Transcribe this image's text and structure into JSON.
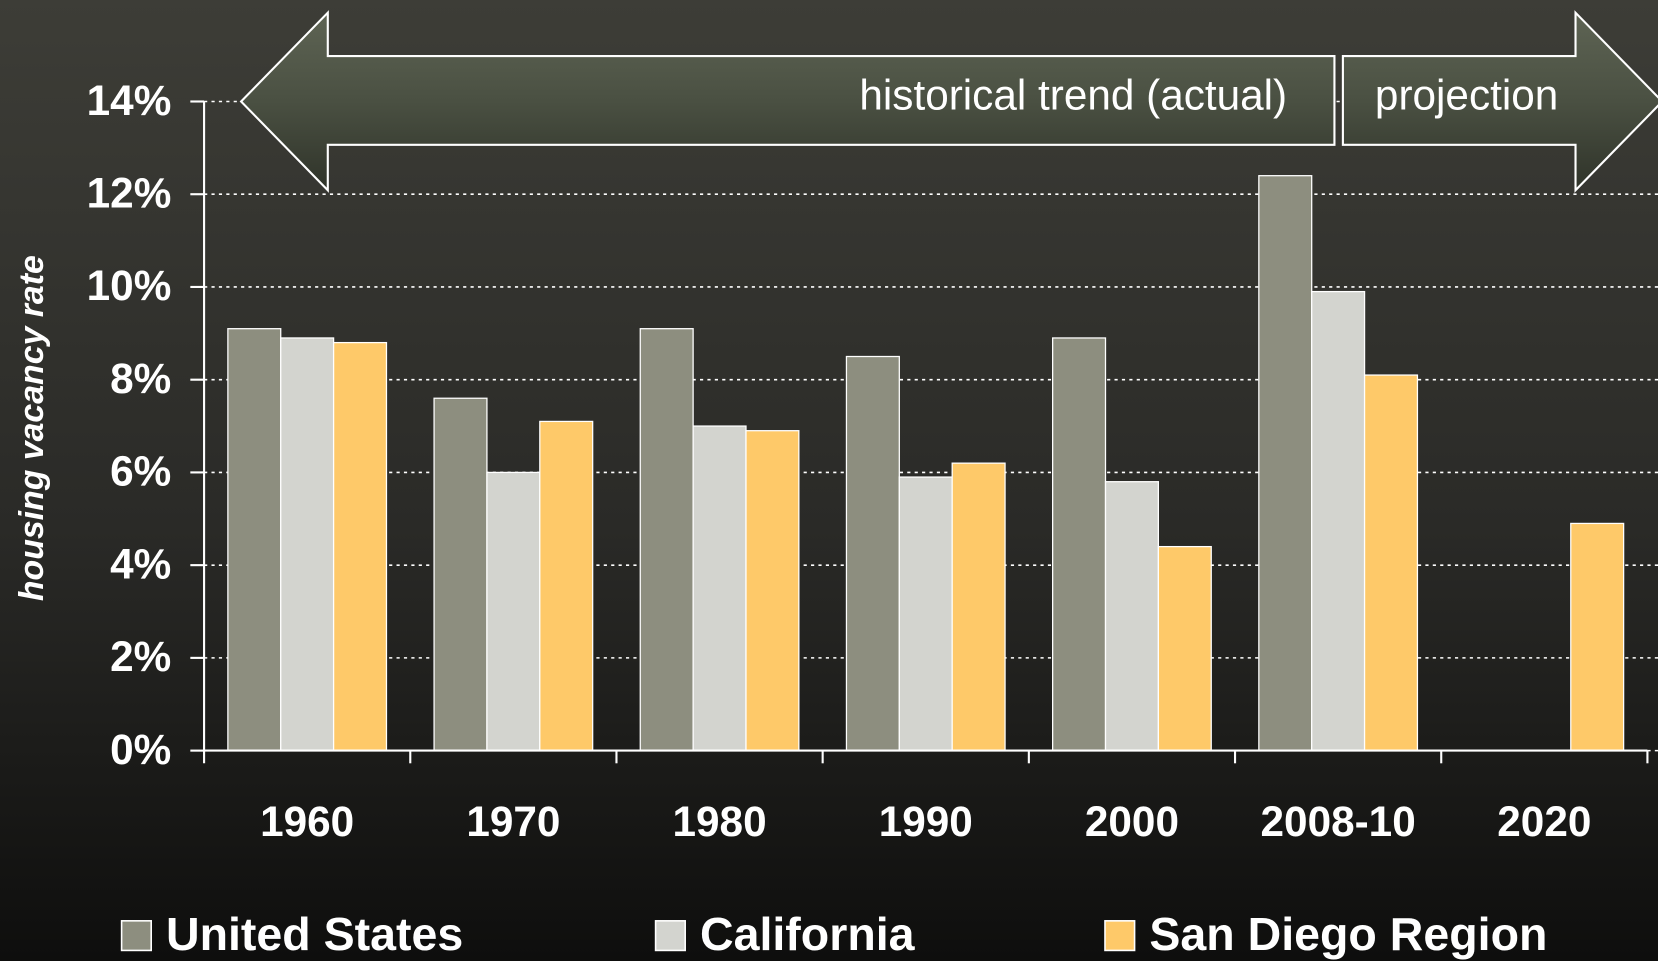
{
  "chart_data": {
    "type": "bar",
    "y_axis_label": "housing vacancy rate",
    "categories": [
      "1960",
      "1970",
      "1980",
      "1990",
      "2000",
      "2008-10",
      "2020"
    ],
    "series": [
      {
        "name": "United States",
        "color": "#8d8e7f",
        "values": [
          9.1,
          7.6,
          9.1,
          8.5,
          8.9,
          12.4,
          null
        ]
      },
      {
        "name": "California",
        "color": "#d3d4cf",
        "values": [
          8.9,
          6.0,
          7.0,
          5.9,
          5.8,
          9.9,
          null
        ]
      },
      {
        "name": "San Diego Region",
        "color": "#fec969",
        "values": [
          8.8,
          7.1,
          6.9,
          6.2,
          4.4,
          8.1,
          4.9
        ]
      }
    ],
    "ylim": [
      0,
      14
    ],
    "yticks": [
      {
        "value": 0,
        "label": "0%"
      },
      {
        "value": 2,
        "label": "2%"
      },
      {
        "value": 4,
        "label": "4%"
      },
      {
        "value": 6,
        "label": "6%"
      },
      {
        "value": 8,
        "label": "8%"
      },
      {
        "value": 10,
        "label": "10%"
      },
      {
        "value": 12,
        "label": "12%"
      },
      {
        "value": 14,
        "label": "14%"
      }
    ],
    "grid": true,
    "annotations": [
      "historical trend (actual)",
      "projection"
    ]
  }
}
